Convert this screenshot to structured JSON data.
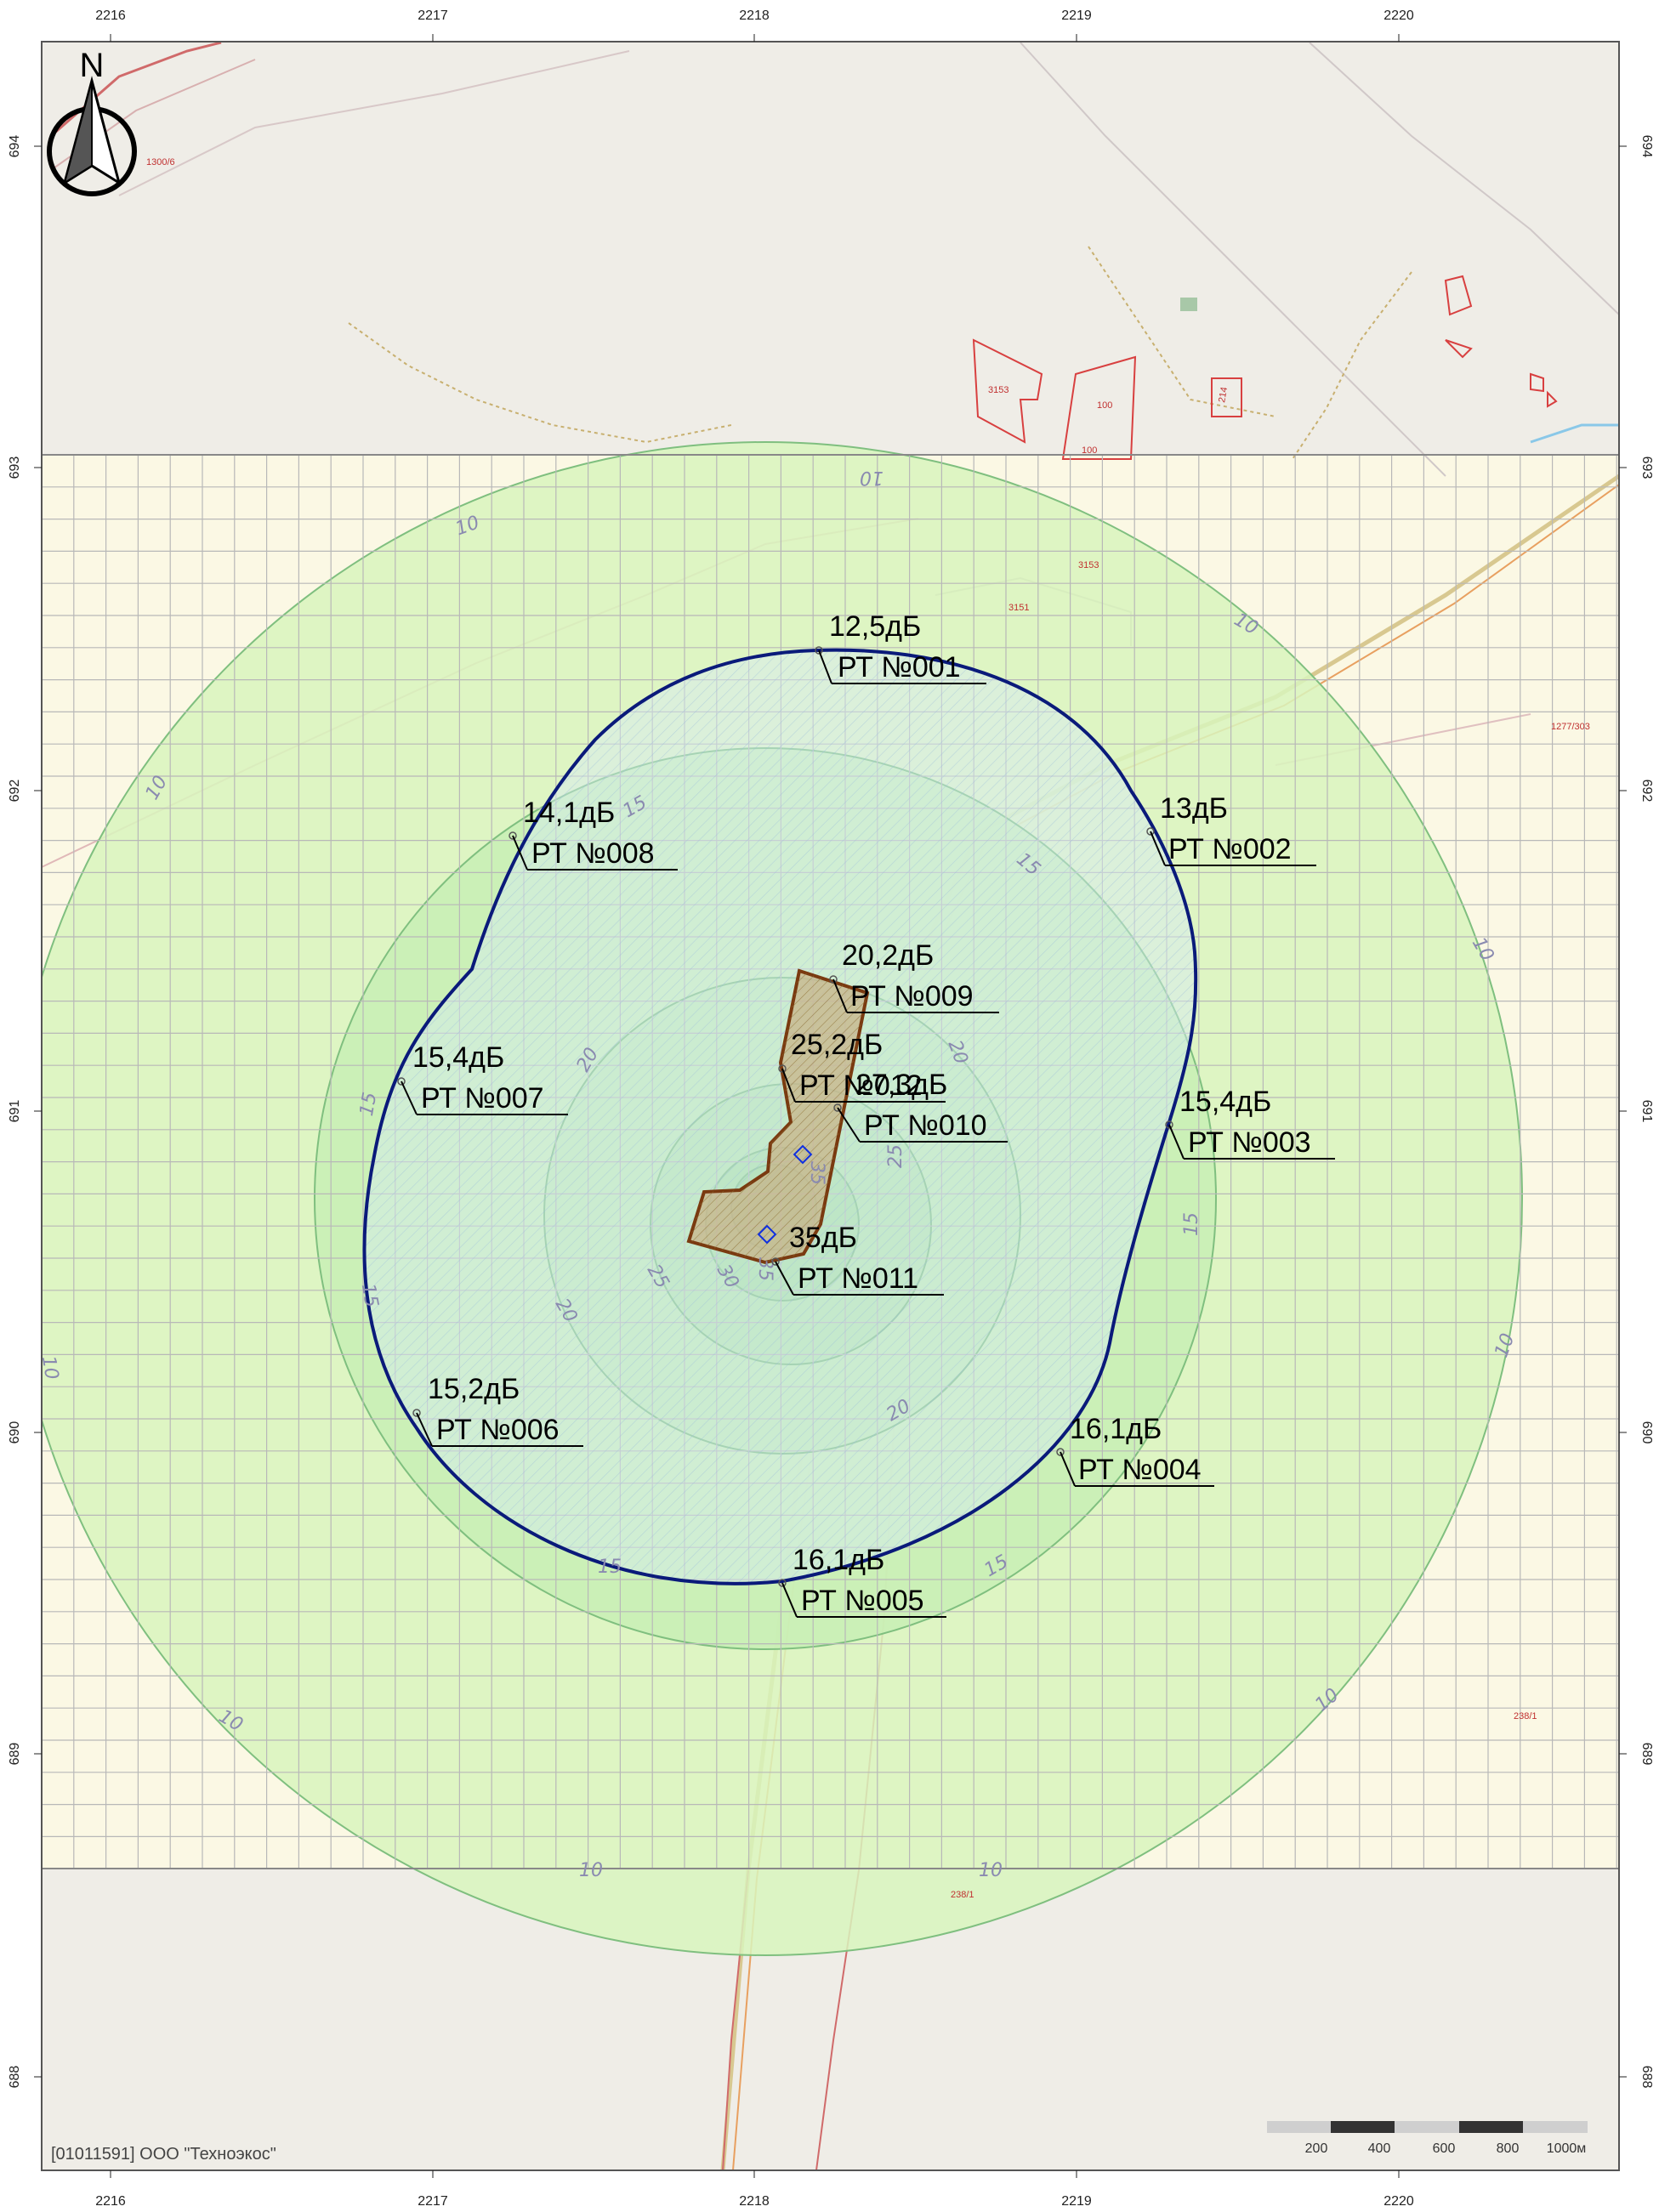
{
  "axis_x_ticks": [
    "2216",
    "2217",
    "2218",
    "2219",
    "2220"
  ],
  "axis_y_ticks": [
    "694",
    "693",
    "692",
    "691",
    "690",
    "689",
    "688"
  ],
  "north_label": "N",
  "map_labels": {
    "parcel_3153": "3153",
    "parcel_100a": "100",
    "parcel_100b": "100",
    "parcel_214": "214",
    "parcel_1300_6": "1300/6",
    "parcel_238_1": "238/1",
    "parcel_238_1b": "238/1",
    "parcel_1277_303": "1277/303",
    "parcel_3151": "3151",
    "parcel_3153b": "3153"
  },
  "contour_labels": [
    "10",
    "15",
    "20",
    "25",
    "30",
    "35"
  ],
  "points": [
    {
      "value": "12,5дБ",
      "name": "РТ №001"
    },
    {
      "value": "13дБ",
      "name": "РТ №002"
    },
    {
      "value": "15,4дБ",
      "name": "РТ №003"
    },
    {
      "value": "16,1дБ",
      "name": "РТ №004"
    },
    {
      "value": "16,1дБ",
      "name": "РТ №005"
    },
    {
      "value": "15,2дБ",
      "name": "РТ №006"
    },
    {
      "value": "15,4дБ",
      "name": "РТ №007"
    },
    {
      "value": "14,1дБ",
      "name": "РТ №008"
    },
    {
      "value": "20,2дБ",
      "name": "РТ №009"
    },
    {
      "value": "27,3дБ",
      "name": "РТ №010"
    },
    {
      "value": "35дБ",
      "name": "РТ №011"
    },
    {
      "value": "25,2дБ",
      "name": "РТ №012"
    }
  ],
  "scale_labels": [
    "200",
    "400",
    "600",
    "800",
    "1000м"
  ],
  "footer": "[01011591] ООО \"Техноэкос\"",
  "colors": {
    "boundary": "#0a1a7a",
    "site": "#7a3a10",
    "contour": "#7fbf7f",
    "grid": "#b8b8b8",
    "parcel": "#d84040",
    "zone_fill": "#c8f0b0"
  }
}
